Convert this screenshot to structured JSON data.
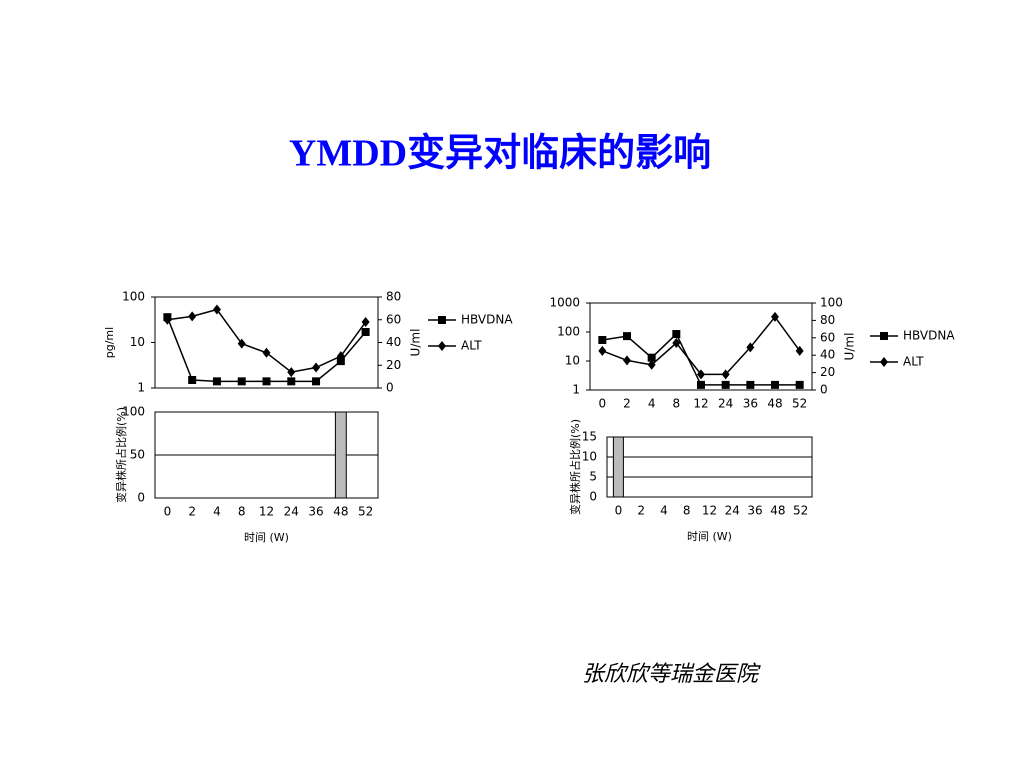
{
  "title": "YMDD变异对临床的影响",
  "credit": "张欣欣等瑞金医院",
  "chart_data": [
    {
      "type": "line",
      "categories": [
        null,
        null,
        null,
        null,
        null,
        null,
        null,
        null,
        null
      ],
      "ylabel": "pg/ml",
      "ylim": [
        1,
        100
      ],
      "yticks": [
        1,
        10,
        100
      ],
      "yscale": "log",
      "y2label": "U/ml",
      "y2lim": [
        0,
        80
      ],
      "y2ticks": [
        0,
        20,
        40,
        60,
        80
      ],
      "legend": "right",
      "series": [
        {
          "name": "HBVDNA",
          "color": "#000000",
          "marker": "square",
          "values": [
            36,
            1.5,
            1.4,
            1.4,
            1.4,
            1.4,
            1.4,
            3.9,
            17
          ]
        },
        {
          "name": "ALT",
          "color": "#000000",
          "marker": "diamond",
          "axis": "y2",
          "values": [
            60,
            63,
            69,
            39,
            31,
            14,
            18,
            28,
            58
          ]
        }
      ]
    },
    {
      "type": "bar",
      "categories": [
        "0",
        "2",
        "4",
        "8",
        "12",
        "24",
        "36",
        "48",
        "52"
      ],
      "ylabel": "变异株所占比例(%)",
      "xlabel": "时间 (W)",
      "ylim": [
        0,
        100
      ],
      "yticks": [
        0,
        50,
        100
      ],
      "grid": true,
      "color": "#bbbbbb",
      "values": [
        0,
        0,
        0,
        0,
        0,
        0,
        0,
        100,
        0
      ]
    },
    {
      "type": "line",
      "categories": [
        "0",
        "2",
        "4",
        "8",
        "12",
        "24",
        "36",
        "48",
        "52"
      ],
      "ylim": [
        1,
        1000
      ],
      "yticks": [
        1,
        10,
        100,
        1000
      ],
      "yscale": "log",
      "y2label": "U/ml",
      "y2lim": [
        0,
        100
      ],
      "y2ticks": [
        0,
        20,
        40,
        60,
        80,
        100
      ],
      "legend": "right",
      "series": [
        {
          "name": "HBVDNA",
          "color": "#000000",
          "marker": "square",
          "values": [
            53,
            72,
            13,
            85,
            1.5,
            1.5,
            1.5,
            1.5,
            1.5
          ]
        },
        {
          "name": "ALT",
          "color": "#000000",
          "marker": "diamond",
          "axis": "y2",
          "values": [
            45,
            34,
            29,
            54,
            18,
            18,
            49,
            84,
            45
          ]
        }
      ]
    },
    {
      "type": "bar",
      "categories": [
        "0",
        "2",
        "4",
        "8",
        "12",
        "24",
        "36",
        "48",
        "52"
      ],
      "ylabel": "变异株所占比例(%)",
      "xlabel": "时间 (W)",
      "ylim": [
        0,
        15
      ],
      "yticks": [
        0,
        5,
        10,
        15
      ],
      "grid": true,
      "color": "#bbbbbb",
      "values": [
        15,
        0,
        0,
        0,
        0,
        0,
        0,
        0,
        0
      ]
    }
  ]
}
